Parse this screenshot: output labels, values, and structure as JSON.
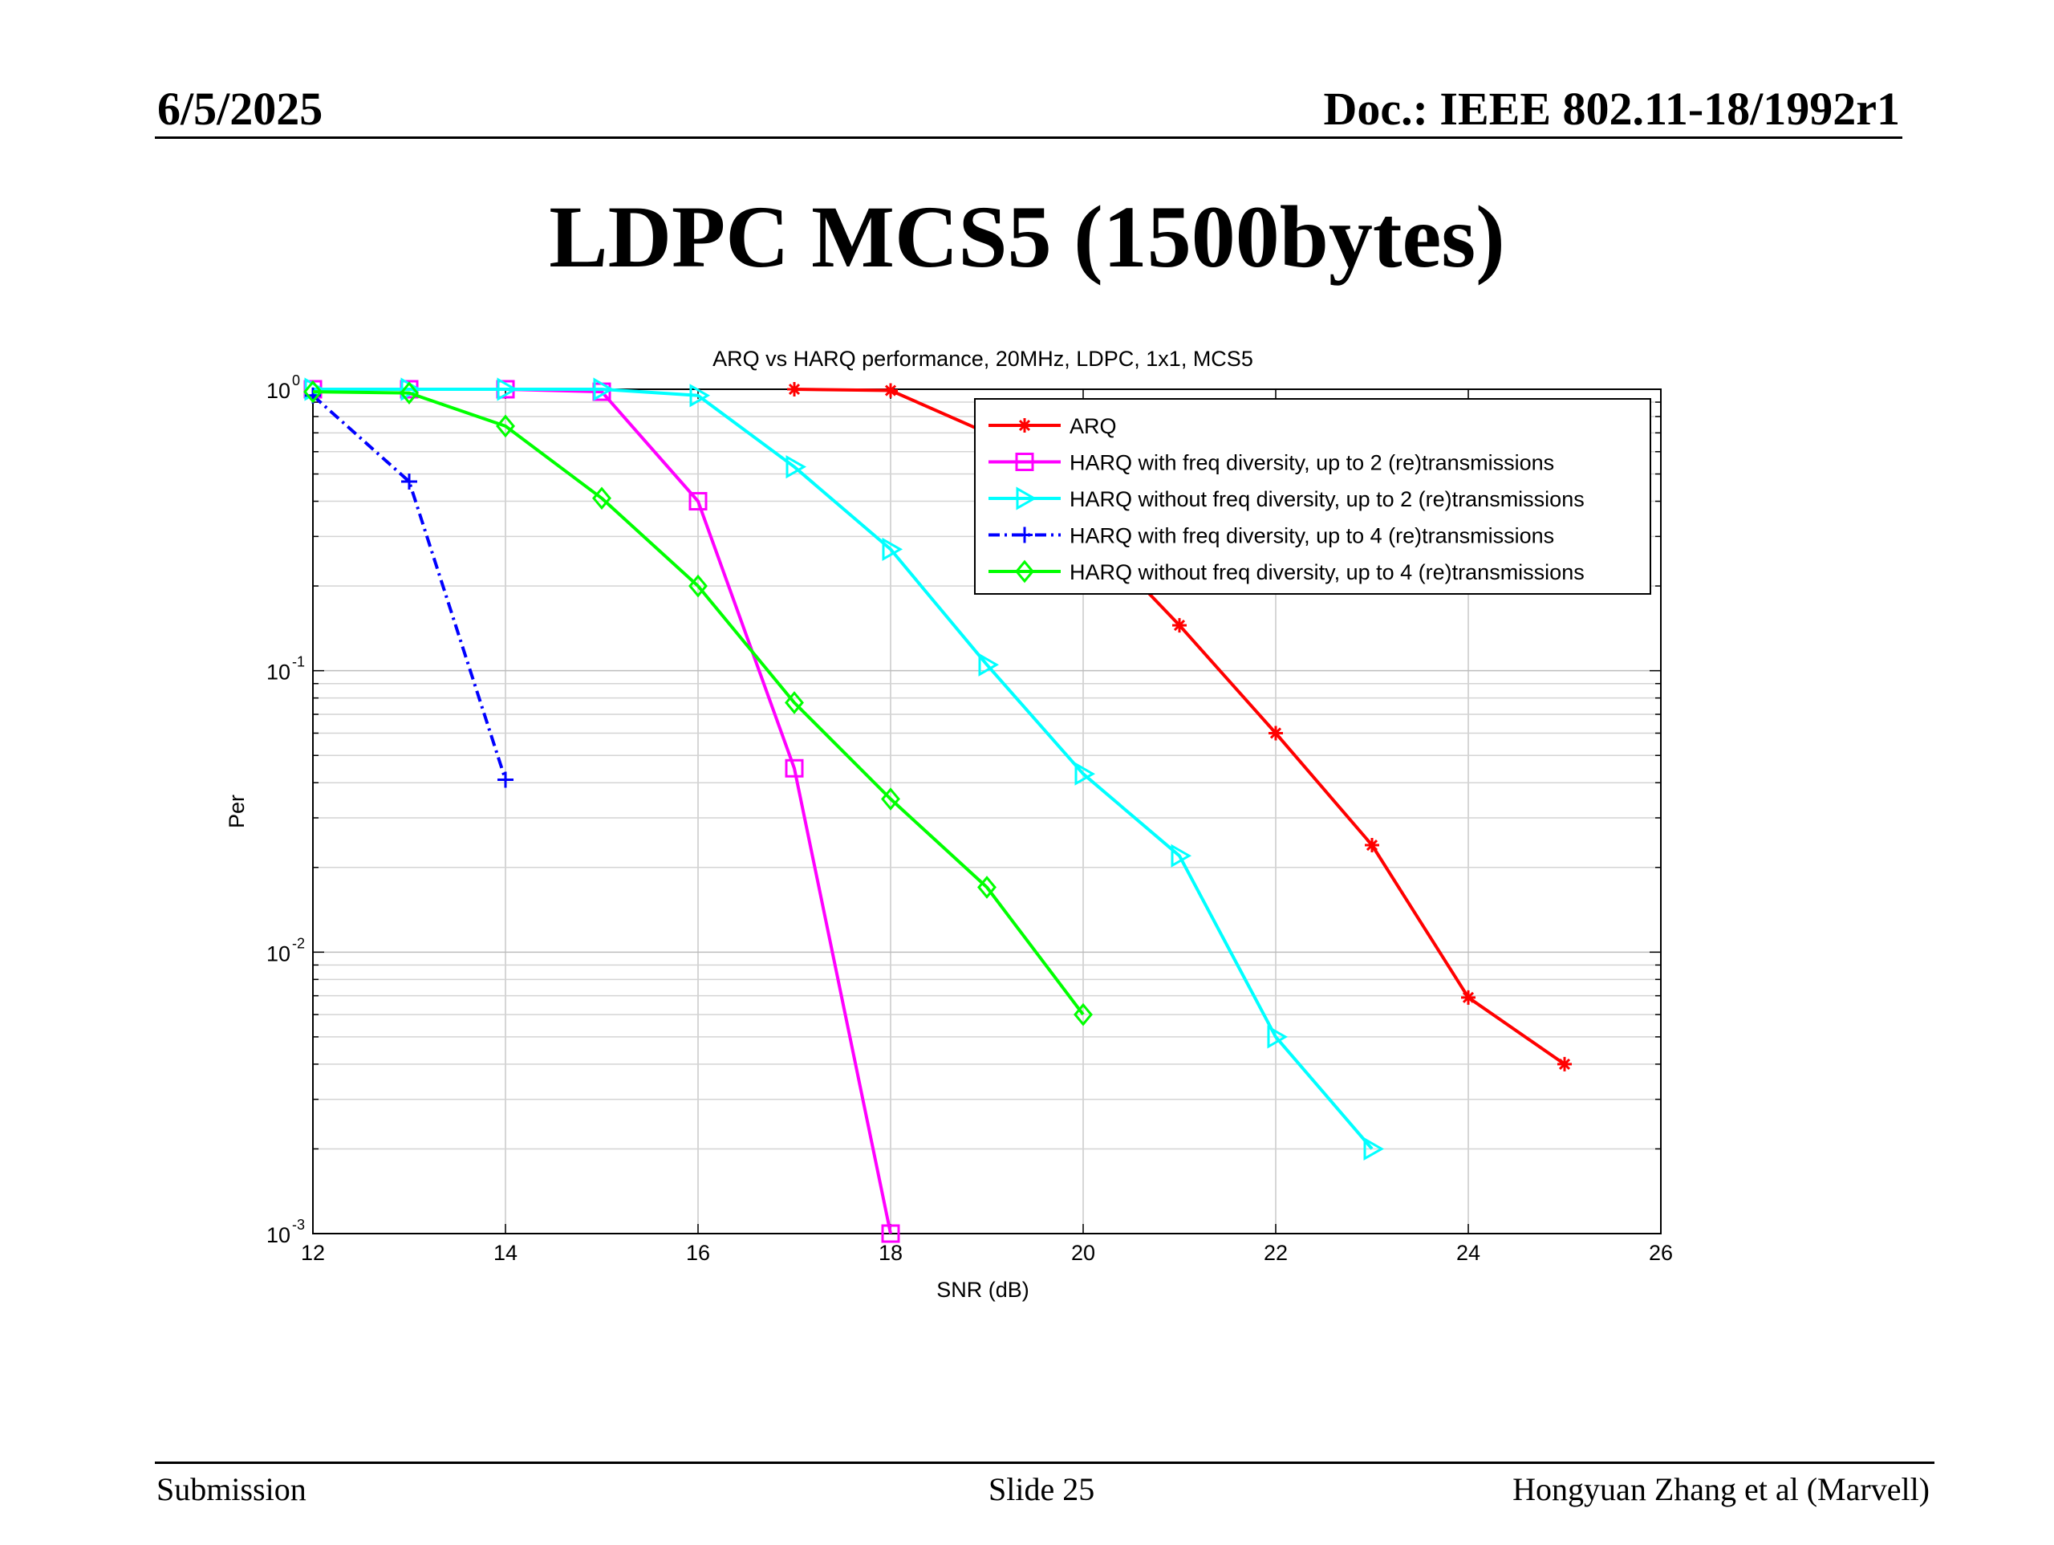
{
  "header": {
    "date": "6/5/2025",
    "doc": "Doc.: IEEE 802.11-18/1992r1"
  },
  "slide_title": "LDPC MCS5 (1500bytes)",
  "footer": {
    "left": "Submission",
    "center": "Slide 25",
    "right": "Hongyuan Zhang et al (Marvell)"
  },
  "chart_data": {
    "type": "line",
    "title": "ARQ vs HARQ performance, 20MHz, LDPC, 1x1, MCS5",
    "xlabel": "SNR (dB)",
    "ylabel": "Per",
    "xlim": [
      12,
      26
    ],
    "ylim": [
      0.001,
      1
    ],
    "yscale": "log",
    "grid": true,
    "legend_position": "top-right",
    "xticks": [
      "12",
      "14",
      "16",
      "18",
      "20",
      "22",
      "24",
      "26"
    ],
    "yticks": [
      {
        "base": "10",
        "exp": "0",
        "value": 1
      },
      {
        "base": "10",
        "exp": "-1",
        "value": 0.1
      },
      {
        "base": "10",
        "exp": "-2",
        "value": 0.01
      },
      {
        "base": "10",
        "exp": "-3",
        "value": 0.001
      }
    ],
    "series": [
      {
        "name": "ARQ",
        "color": "#ff0000",
        "marker": "star",
        "dash": "",
        "x": [
          17,
          18,
          19,
          20,
          21,
          22,
          23,
          24,
          25
        ],
        "y": [
          1.0,
          0.99,
          0.7,
          0.33,
          0.145,
          0.06,
          0.024,
          0.0069,
          0.004
        ]
      },
      {
        "name": "HARQ with freq diversity, up to 2 (re)transmissions",
        "color": "#ff00ff",
        "marker": "square",
        "dash": "",
        "x": [
          12,
          13,
          14,
          15,
          16,
          17,
          18
        ],
        "y": [
          1.0,
          1.0,
          1.0,
          0.98,
          0.4,
          0.045,
          0.001
        ]
      },
      {
        "name": "HARQ without freq diversity, up to 2 (re)transmissions",
        "color": "#00ffff",
        "marker": "triangle-right",
        "dash": "",
        "x": [
          12,
          13,
          14,
          15,
          16,
          17,
          18,
          19,
          20,
          21,
          22,
          23
        ],
        "y": [
          1.0,
          1.0,
          1.0,
          1.0,
          0.95,
          0.53,
          0.27,
          0.105,
          0.043,
          0.022,
          0.005,
          0.002
        ]
      },
      {
        "name": "HARQ with freq diversity, up to 4 (re)transmissions",
        "color": "#0000ff",
        "marker": "plus",
        "dash": "14,6,3,6",
        "x": [
          12,
          13,
          14
        ],
        "y": [
          0.95,
          0.47,
          0.041
        ]
      },
      {
        "name": "HARQ without freq diversity, up to 4 (re)transmissions",
        "color": "#00ff00",
        "marker": "diamond",
        "dash": "",
        "x": [
          12,
          13,
          14,
          15,
          16,
          17,
          18,
          19,
          20
        ],
        "y": [
          0.98,
          0.97,
          0.74,
          0.41,
          0.2,
          0.077,
          0.035,
          0.017,
          0.006
        ]
      }
    ]
  }
}
